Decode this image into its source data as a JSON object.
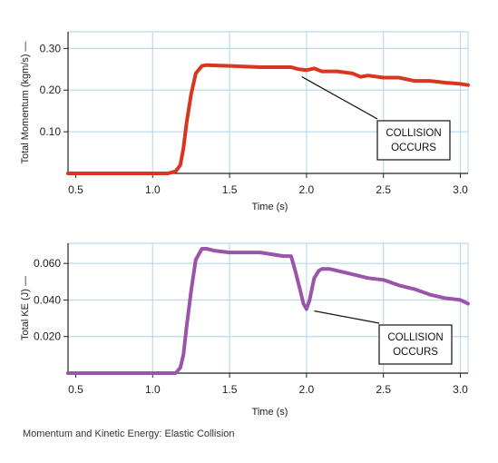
{
  "caption": "Momentum and Kinetic Energy: Elastic Collision",
  "colors": {
    "grid": "#b8dcec",
    "axis": "#222222",
    "momentum": "#d8361e",
    "ke": "#9a55aa"
  },
  "chart_data": [
    {
      "type": "line",
      "xlabel": "Time (s)",
      "ylabel": "Total Momentum (kgm/s) —",
      "xlim": [
        0.45,
        3.05
      ],
      "ylim": [
        0,
        0.34
      ],
      "xticks": [
        "0.5",
        "1.0",
        "1.5",
        "2.0",
        "2.5",
        "3.0"
      ],
      "yticks": [
        "0.10",
        "0.20",
        "0.30"
      ],
      "grid": true,
      "series": [
        {
          "x": [
            0.45,
            1.0,
            1.1,
            1.15,
            1.18,
            1.2,
            1.22,
            1.25,
            1.28,
            1.32,
            1.35,
            1.5,
            1.7,
            1.9,
            1.95,
            2.0,
            2.05,
            2.1,
            2.2,
            2.3,
            2.35,
            2.4,
            2.5,
            2.6,
            2.7,
            2.8,
            2.9,
            3.0,
            3.05
          ],
          "y": [
            0.0,
            0.0,
            0.0,
            0.005,
            0.02,
            0.06,
            0.12,
            0.19,
            0.24,
            0.258,
            0.26,
            0.258,
            0.255,
            0.255,
            0.25,
            0.248,
            0.252,
            0.245,
            0.245,
            0.24,
            0.232,
            0.235,
            0.23,
            0.23,
            0.222,
            0.222,
            0.218,
            0.215,
            0.212
          ]
        }
      ],
      "annotations": [
        {
          "lines": [
            "COLLISION",
            "OCCURS"
          ],
          "point": [
            1.97,
            0.232
          ]
        }
      ]
    },
    {
      "type": "line",
      "xlabel": "Time (s)",
      "ylabel": "Total KE (J) —",
      "xlim": [
        0.45,
        3.05
      ],
      "ylim": [
        0,
        0.071
      ],
      "xticks": [
        "0.5",
        "1.0",
        "1.5",
        "2.0",
        "2.5",
        "3.0"
      ],
      "yticks": [
        "0.020",
        "0.040",
        "0.060"
      ],
      "grid": true,
      "series": [
        {
          "x": [
            0.45,
            1.0,
            1.15,
            1.18,
            1.2,
            1.22,
            1.25,
            1.28,
            1.32,
            1.35,
            1.4,
            1.5,
            1.7,
            1.85,
            1.9,
            1.93,
            1.96,
            1.98,
            2.0,
            2.02,
            2.05,
            2.08,
            2.1,
            2.15,
            2.2,
            2.3,
            2.4,
            2.5,
            2.6,
            2.7,
            2.8,
            2.9,
            3.0,
            3.05
          ],
          "y": [
            0.0,
            0.0,
            0.0,
            0.003,
            0.01,
            0.025,
            0.045,
            0.062,
            0.068,
            0.068,
            0.067,
            0.066,
            0.066,
            0.064,
            0.064,
            0.055,
            0.045,
            0.038,
            0.035,
            0.04,
            0.052,
            0.056,
            0.057,
            0.057,
            0.056,
            0.054,
            0.052,
            0.051,
            0.048,
            0.046,
            0.043,
            0.041,
            0.04,
            0.038
          ]
        }
      ],
      "annotations": [
        {
          "lines": [
            "COLLISION",
            "OCCURS"
          ],
          "point": [
            2.05,
            0.034
          ]
        }
      ]
    }
  ]
}
